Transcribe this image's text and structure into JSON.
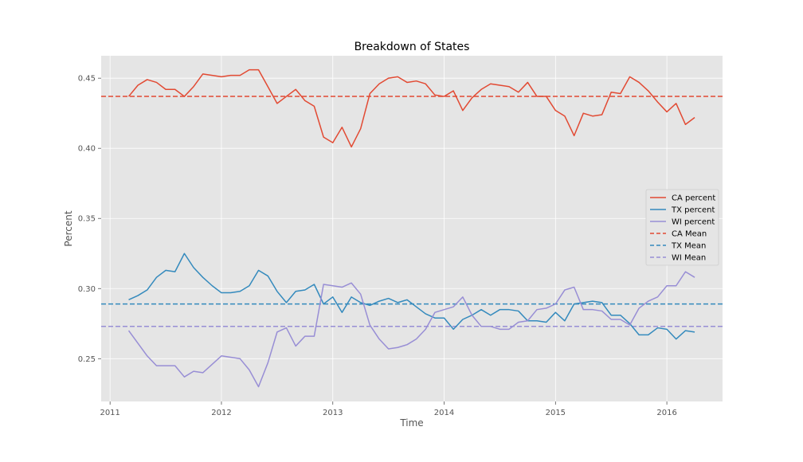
{
  "chart_data": {
    "type": "line",
    "title": "Breakdown of States",
    "xlabel": "Time",
    "ylabel": "Percent",
    "xlim": [
      2010.92,
      2016.5
    ],
    "ylim": [
      0.2195,
      0.466
    ],
    "x_ticks": [
      2011,
      2012,
      2013,
      2014,
      2015,
      2016
    ],
    "x_tick_labels": [
      "2011",
      "2012",
      "2013",
      "2014",
      "2015",
      "2016"
    ],
    "y_ticks": [
      0.25,
      0.3,
      0.35,
      0.4,
      0.45
    ],
    "y_tick_labels": [
      "0.25",
      "0.30",
      "0.35",
      "0.40",
      "0.45"
    ],
    "grid": true,
    "legend_position": "right",
    "x": [
      2011.167,
      2011.25,
      2011.333,
      2011.417,
      2011.5,
      2011.583,
      2011.667,
      2011.75,
      2011.833,
      2011.917,
      2012.0,
      2012.083,
      2012.167,
      2012.25,
      2012.333,
      2012.417,
      2012.5,
      2012.583,
      2012.667,
      2012.75,
      2012.833,
      2012.917,
      2013.0,
      2013.083,
      2013.167,
      2013.25,
      2013.333,
      2013.417,
      2013.5,
      2013.583,
      2013.667,
      2013.75,
      2013.833,
      2013.917,
      2014.0,
      2014.083,
      2014.167,
      2014.25,
      2014.333,
      2014.417,
      2014.5,
      2014.583,
      2014.667,
      2014.75,
      2014.833,
      2014.917,
      2015.0,
      2015.083,
      2015.167,
      2015.25,
      2015.333,
      2015.417,
      2015.5,
      2015.583,
      2015.667,
      2015.75,
      2015.833,
      2015.917,
      2016.0,
      2016.083,
      2016.167,
      2016.25
    ],
    "series": [
      {
        "name": "CA percent",
        "color": "#E24A33",
        "style": "solid",
        "values": [
          0.437,
          0.445,
          0.449,
          0.447,
          0.442,
          0.442,
          0.437,
          0.444,
          0.453,
          0.452,
          0.451,
          0.452,
          0.452,
          0.456,
          0.456,
          0.444,
          0.432,
          0.437,
          0.442,
          0.434,
          0.43,
          0.408,
          0.404,
          0.415,
          0.401,
          0.414,
          0.439,
          0.446,
          0.45,
          0.451,
          0.447,
          0.448,
          0.446,
          0.438,
          0.437,
          0.441,
          0.427,
          0.436,
          0.442,
          0.446,
          0.445,
          0.444,
          0.44,
          0.447,
          0.437,
          0.437,
          0.427,
          0.423,
          0.409,
          0.425,
          0.423,
          0.424,
          0.44,
          0.439,
          0.451,
          0.447,
          0.441,
          0.433,
          0.426,
          0.432,
          0.417,
          0.422
        ]
      },
      {
        "name": "TX percent",
        "color": "#348ABD",
        "style": "solid",
        "values": [
          0.292,
          0.295,
          0.299,
          0.308,
          0.313,
          0.312,
          0.325,
          0.315,
          0.308,
          0.302,
          0.297,
          0.297,
          0.298,
          0.302,
          0.313,
          0.309,
          0.298,
          0.29,
          0.298,
          0.299,
          0.303,
          0.289,
          0.294,
          0.283,
          0.294,
          0.29,
          0.288,
          0.291,
          0.293,
          0.29,
          0.292,
          0.287,
          0.282,
          0.279,
          0.279,
          0.271,
          0.278,
          0.281,
          0.285,
          0.281,
          0.285,
          0.285,
          0.284,
          0.277,
          0.277,
          0.276,
          0.283,
          0.277,
          0.289,
          0.29,
          0.291,
          0.29,
          0.281,
          0.281,
          0.275,
          0.267,
          0.267,
          0.272,
          0.271,
          0.264,
          0.27,
          0.269
        ]
      },
      {
        "name": "WI percent",
        "color": "#988ED5",
        "style": "solid",
        "values": [
          0.27,
          0.261,
          0.252,
          0.245,
          0.245,
          0.245,
          0.237,
          0.241,
          0.24,
          0.246,
          0.252,
          0.251,
          0.25,
          0.242,
          0.23,
          0.247,
          0.269,
          0.272,
          0.259,
          0.266,
          0.266,
          0.303,
          0.302,
          0.301,
          0.304,
          0.296,
          0.274,
          0.264,
          0.257,
          0.258,
          0.26,
          0.264,
          0.271,
          0.283,
          0.285,
          0.287,
          0.294,
          0.281,
          0.273,
          0.273,
          0.271,
          0.271,
          0.276,
          0.277,
          0.285,
          0.286,
          0.289,
          0.299,
          0.301,
          0.285,
          0.285,
          0.284,
          0.278,
          0.278,
          0.274,
          0.286,
          0.291,
          0.294,
          0.302,
          0.302,
          0.312,
          0.308
        ]
      },
      {
        "name": "CA Mean",
        "color": "#E24A33",
        "style": "dashed",
        "constant": 0.437
      },
      {
        "name": "TX Mean",
        "color": "#348ABD",
        "style": "dashed",
        "constant": 0.289
      },
      {
        "name": "WI Mean",
        "color": "#988ED5",
        "style": "dashed",
        "constant": 0.273
      }
    ]
  }
}
